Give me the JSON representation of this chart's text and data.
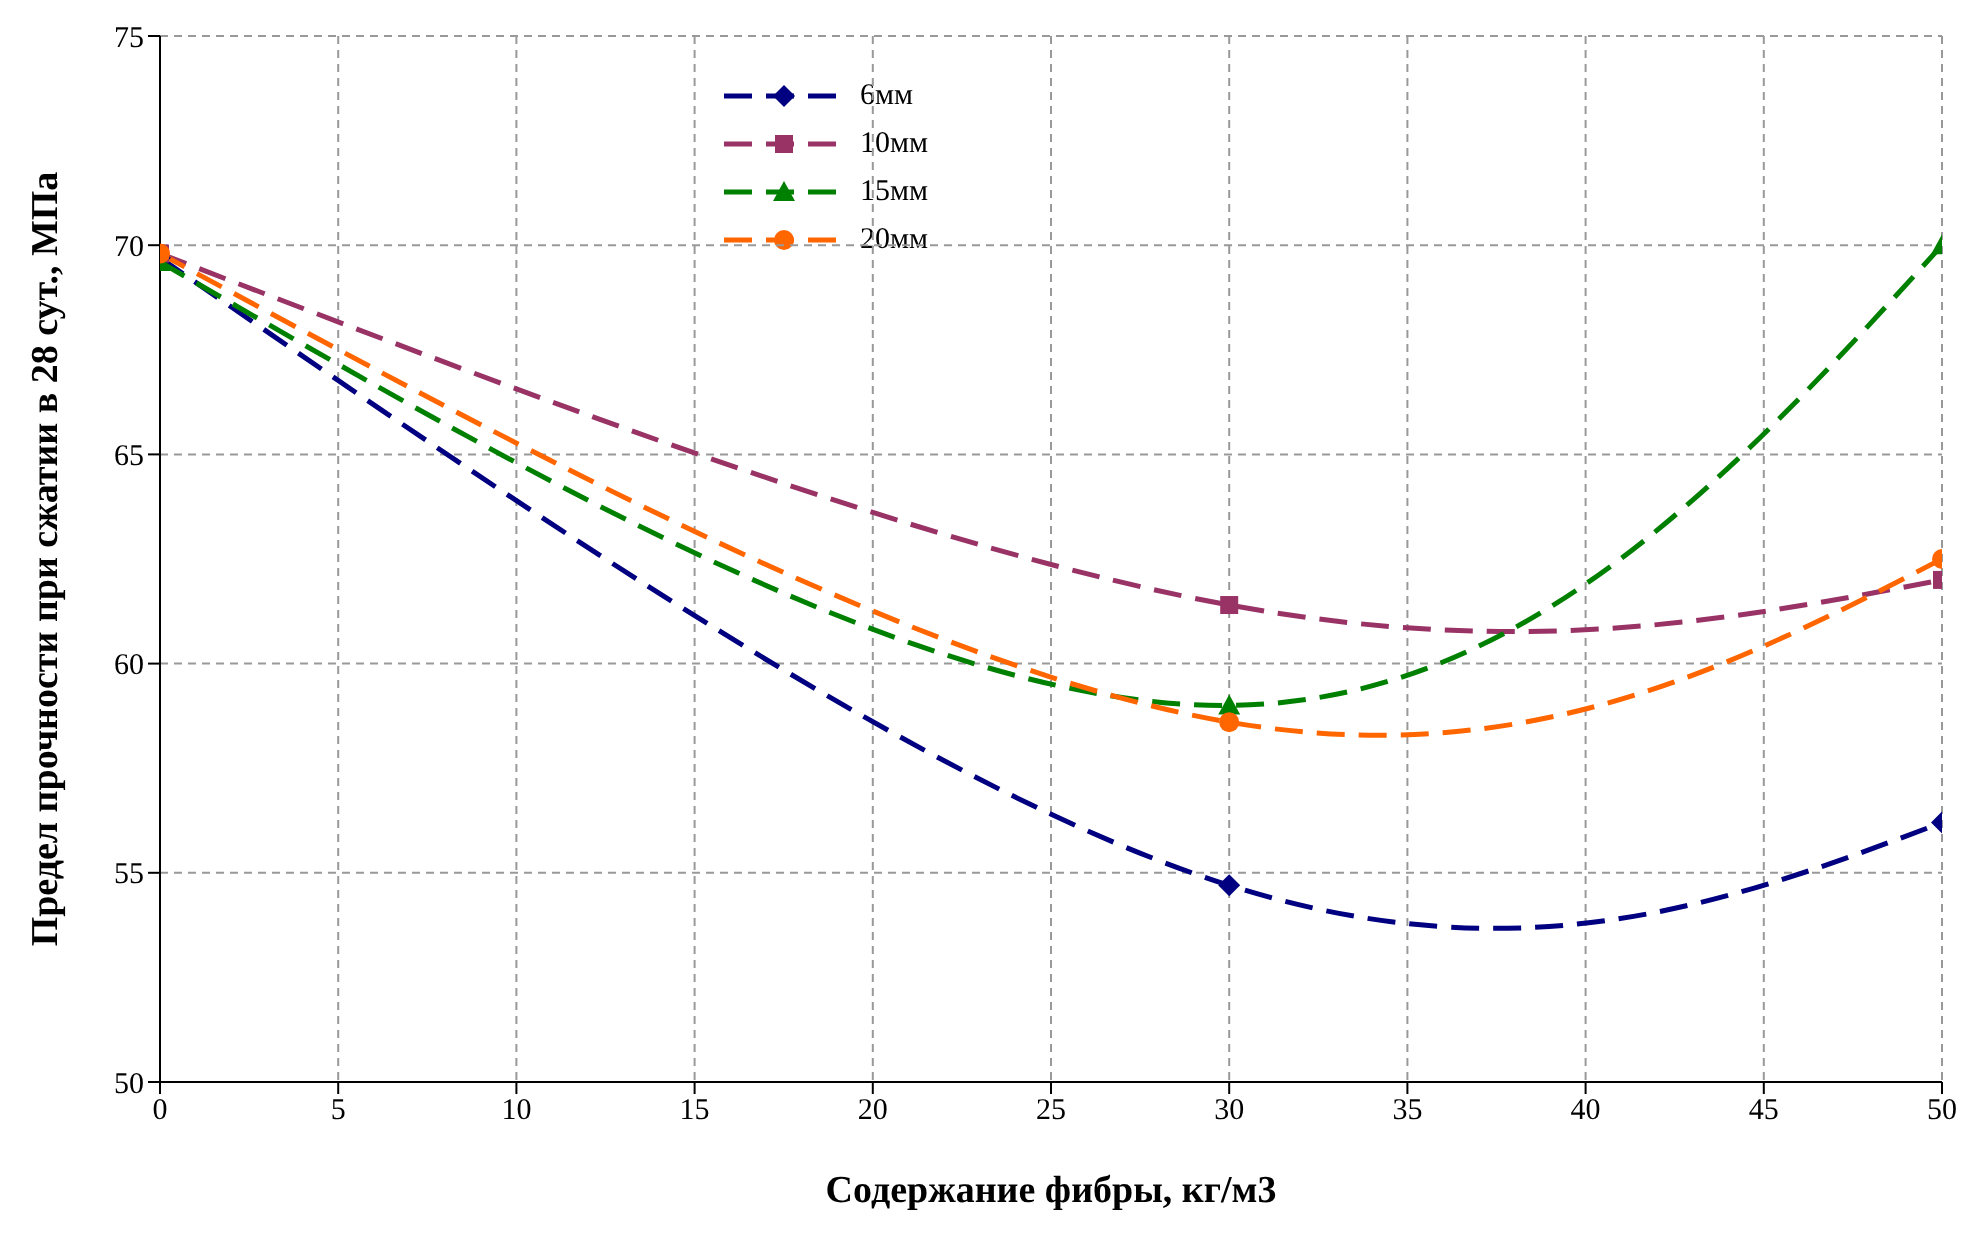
{
  "chart_data": {
    "type": "line",
    "xlabel": "Содержание фибры, кг/м3",
    "ylabel": "Предел прочности при сжатии в 28 сут., МПа",
    "x": [
      0,
      30,
      50
    ],
    "series": [
      {
        "name": "6мм",
        "color": "#000080",
        "values": [
          69.7,
          54.7,
          56.2
        ],
        "marker": "diamond"
      },
      {
        "name": "10мм",
        "color": "#993366",
        "values": [
          69.8,
          61.4,
          62.0
        ],
        "marker": "square"
      },
      {
        "name": "15мм",
        "color": "#008000",
        "values": [
          69.6,
          59.0,
          70.0
        ],
        "marker": "triangle"
      },
      {
        "name": "20мм",
        "color": "#ff6600",
        "values": [
          69.8,
          58.6,
          62.5
        ],
        "marker": "circle"
      }
    ],
    "xlim": [
      0,
      50
    ],
    "xticks": [
      0,
      5,
      10,
      15,
      20,
      25,
      30,
      35,
      40,
      45,
      50
    ],
    "ylim": [
      50,
      75
    ],
    "yticks": [
      50,
      55,
      60,
      65,
      70,
      75
    ],
    "grid": true,
    "legend": "top",
    "line_style": "dashed"
  }
}
